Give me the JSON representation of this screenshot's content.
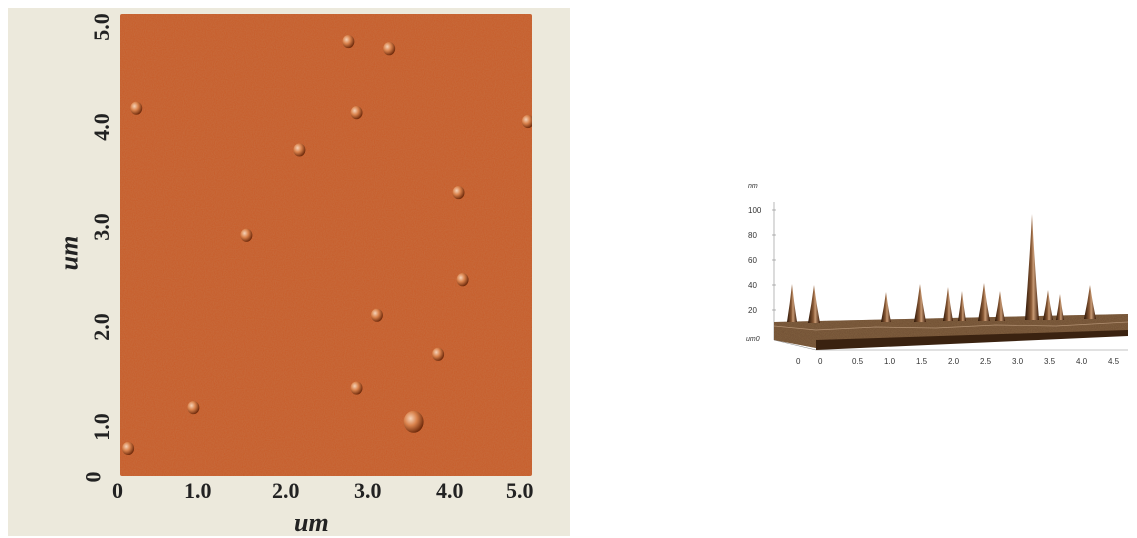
{
  "afm_2d": {
    "y_ticks": [
      "5.0",
      "4.0",
      "3.0",
      "2.0",
      "1.0",
      "0"
    ],
    "x_ticks": [
      "0",
      "1.0",
      "2.0",
      "3.0",
      "4.0",
      "5.0"
    ],
    "x_label": "um",
    "y_label": "um",
    "surface_color": "#c85a26",
    "particles_um": [
      [
        2.75,
        4.8
      ],
      [
        3.25,
        4.72
      ],
      [
        0.15,
        4.05
      ],
      [
        2.85,
        4.0
      ],
      [
        4.95,
        3.9
      ],
      [
        2.15,
        3.58
      ],
      [
        4.1,
        3.1
      ],
      [
        1.5,
        2.62
      ],
      [
        4.15,
        2.12
      ],
      [
        3.1,
        1.72
      ],
      [
        3.85,
        1.28
      ],
      [
        2.85,
        0.9
      ],
      [
        0.85,
        0.68
      ],
      [
        3.55,
        0.52
      ],
      [
        0.05,
        0.22
      ]
    ]
  },
  "afm_3d": {
    "z_unit": "nm",
    "z_ticks": [
      "100",
      "80",
      "60",
      "40",
      "20"
    ],
    "depth_label": "um0",
    "x_ticks": [
      "0",
      "0",
      "0.5",
      "1.0",
      "1.5",
      "2.0",
      "2.5",
      "3.0",
      "3.5",
      "4.0",
      "4.5"
    ],
    "peak_color": "#5a3418"
  }
}
